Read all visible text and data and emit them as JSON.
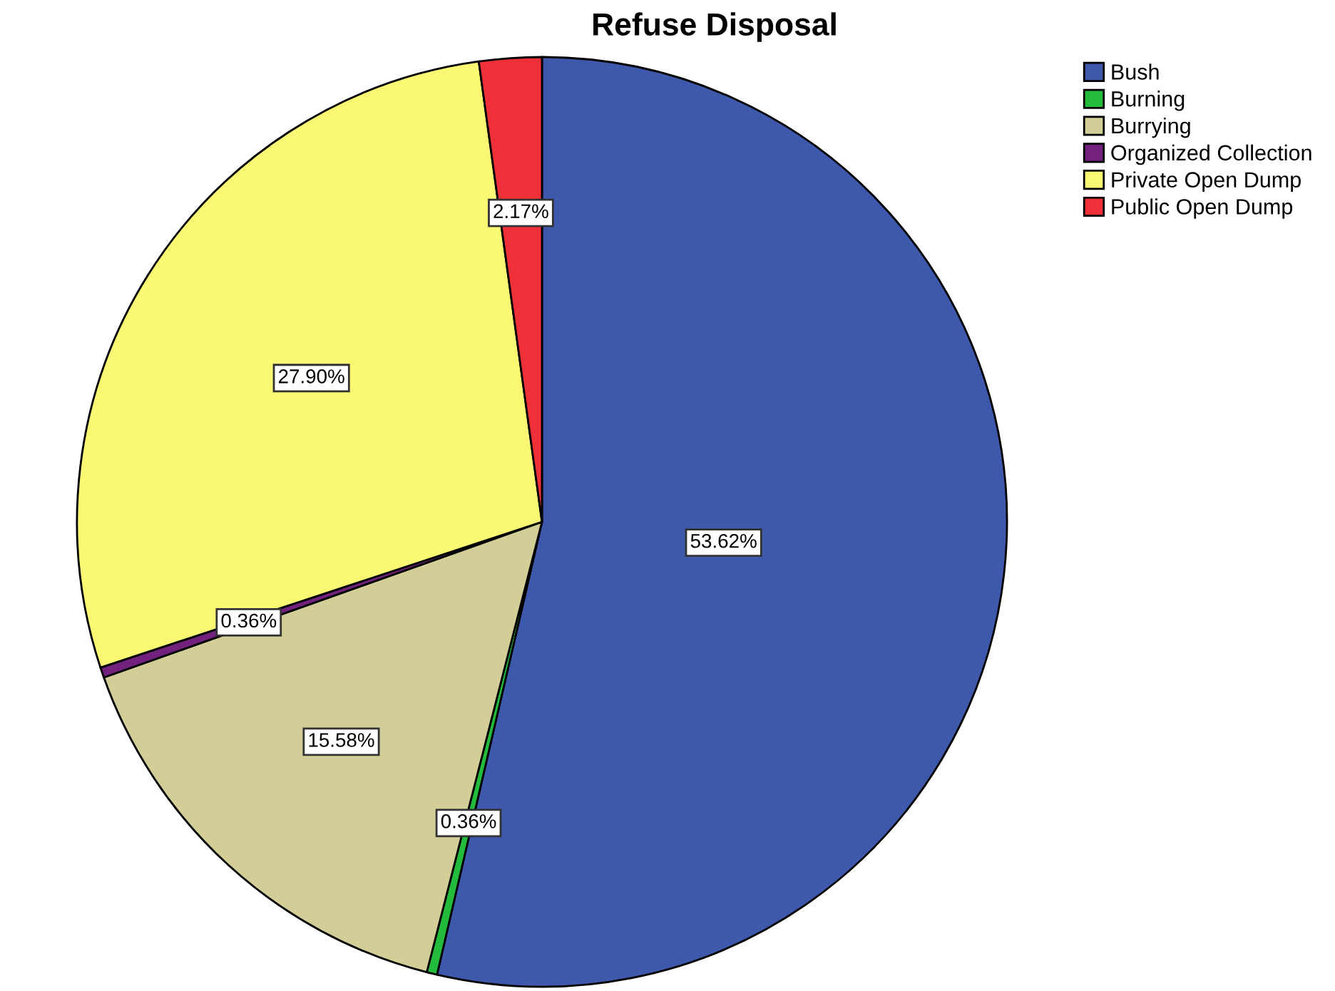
{
  "chart_data": {
    "type": "pie",
    "title": "Refuse Disposal",
    "categories": [
      "Bush",
      "Burning",
      "Burrying",
      "Organized Collection",
      "Private Open Dump",
      "Public Open Dump"
    ],
    "values": [
      53.62,
      0.36,
      15.58,
      0.36,
      27.9,
      2.17
    ],
    "value_labels": [
      "53.62%",
      "0.36%",
      "15.58%",
      "0.36%",
      "27.90%",
      "2.17%"
    ],
    "colors": [
      "#3e58ac",
      "#22bb3b",
      "#d3ce97",
      "#72217d",
      "#fbf873",
      "#ef3038"
    ],
    "legend": "top right"
  }
}
